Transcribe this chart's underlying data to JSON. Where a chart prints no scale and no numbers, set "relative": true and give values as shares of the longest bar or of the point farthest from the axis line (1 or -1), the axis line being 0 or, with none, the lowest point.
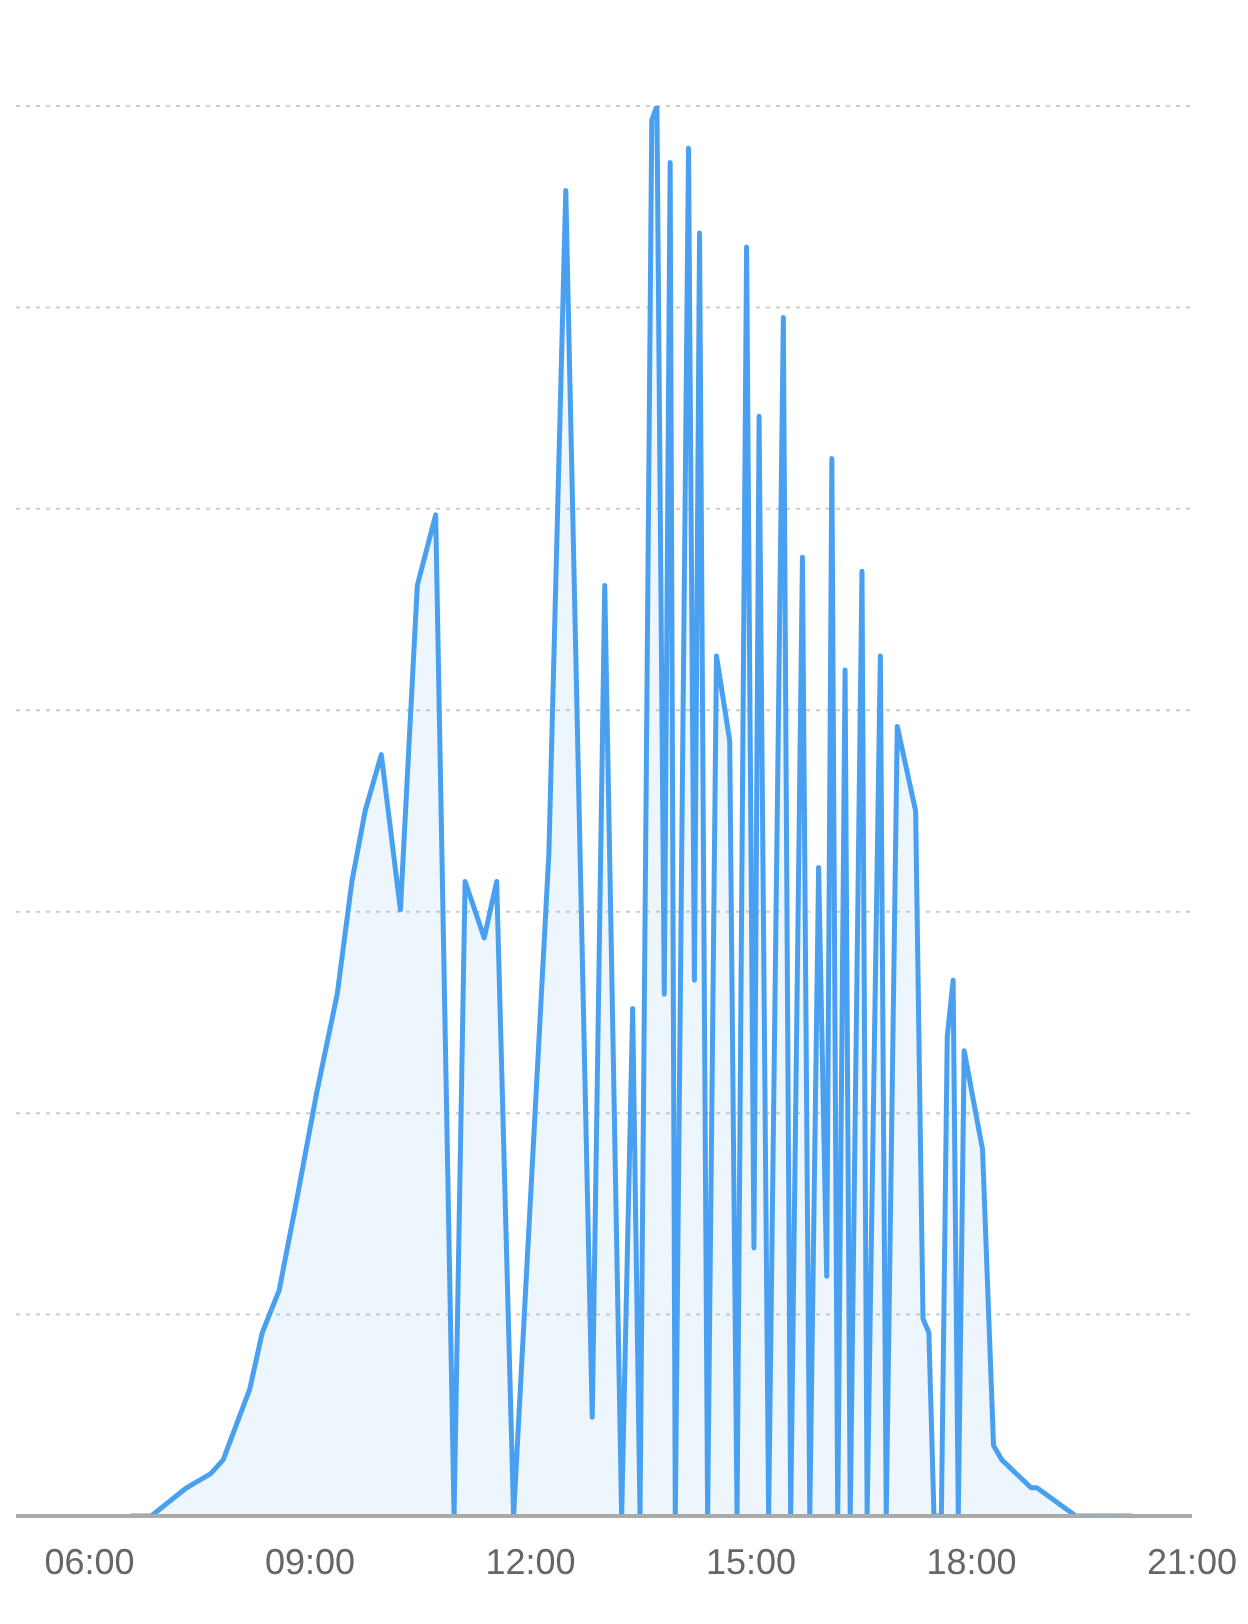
{
  "chart_data": {
    "type": "area",
    "relative": true,
    "color": "#4aa0f0",
    "grid": "y",
    "xlim": [
      5,
      21
    ],
    "xticks": [
      {
        "value": 6,
        "label": "06:00"
      },
      {
        "value": 9,
        "label": "09:00"
      },
      {
        "value": 12,
        "label": "12:00"
      },
      {
        "value": 15,
        "label": "15:00"
      },
      {
        "value": 18,
        "label": "18:00"
      },
      {
        "value": 21,
        "label": "21:00"
      }
    ],
    "x": [
      6.56,
      6.84,
      7.32,
      7.65,
      7.82,
      8.18,
      8.35,
      8.58,
      8.84,
      9.09,
      9.37,
      9.57,
      9.75,
      9.97,
      10.23,
      10.46,
      10.71,
      10.96,
      11.11,
      11.37,
      11.54,
      11.77,
      12.25,
      12.48,
      12.84,
      13.01,
      13.24,
      13.39,
      13.49,
      13.65,
      13.72,
      13.82,
      13.9,
      13.97,
      14.15,
      14.23,
      14.3,
      14.41,
      14.53,
      14.71,
      14.81,
      14.94,
      15.04,
      15.11,
      15.24,
      15.44,
      15.54,
      15.7,
      15.8,
      15.92,
      16.03,
      16.1,
      16.18,
      16.28,
      16.35,
      16.51,
      16.58,
      16.76,
      16.84,
      16.99,
      17.24,
      17.34,
      17.42,
      17.49,
      17.59,
      17.67,
      17.75,
      17.82,
      17.9,
      18.15,
      18.3,
      18.41,
      18.81,
      18.89,
      19.42,
      20.18
    ],
    "values": [
      0,
      0,
      0.02,
      0.03,
      0.04,
      0.09,
      0.13,
      0.16,
      0.23,
      0.3,
      0.37,
      0.45,
      0.5,
      0.54,
      0.43,
      0.66,
      0.71,
      0,
      0.45,
      0.41,
      0.45,
      0,
      0.47,
      0.94,
      0.07,
      0.66,
      0,
      0.36,
      0,
      0.99,
      1,
      0.37,
      0.96,
      0,
      0.97,
      0.38,
      0.91,
      0,
      0.61,
      0.55,
      0,
      0.9,
      0.19,
      0.78,
      0,
      0.85,
      0,
      0.68,
      0,
      0.46,
      0.17,
      0.75,
      0,
      0.6,
      0,
      0.67,
      0,
      0.61,
      0,
      0.56,
      0.5,
      0.14,
      0.13,
      0,
      0,
      0.34,
      0.38,
      0,
      0.33,
      0.26,
      0.05,
      0.04,
      0.02,
      0.02,
      0,
      0
    ]
  }
}
